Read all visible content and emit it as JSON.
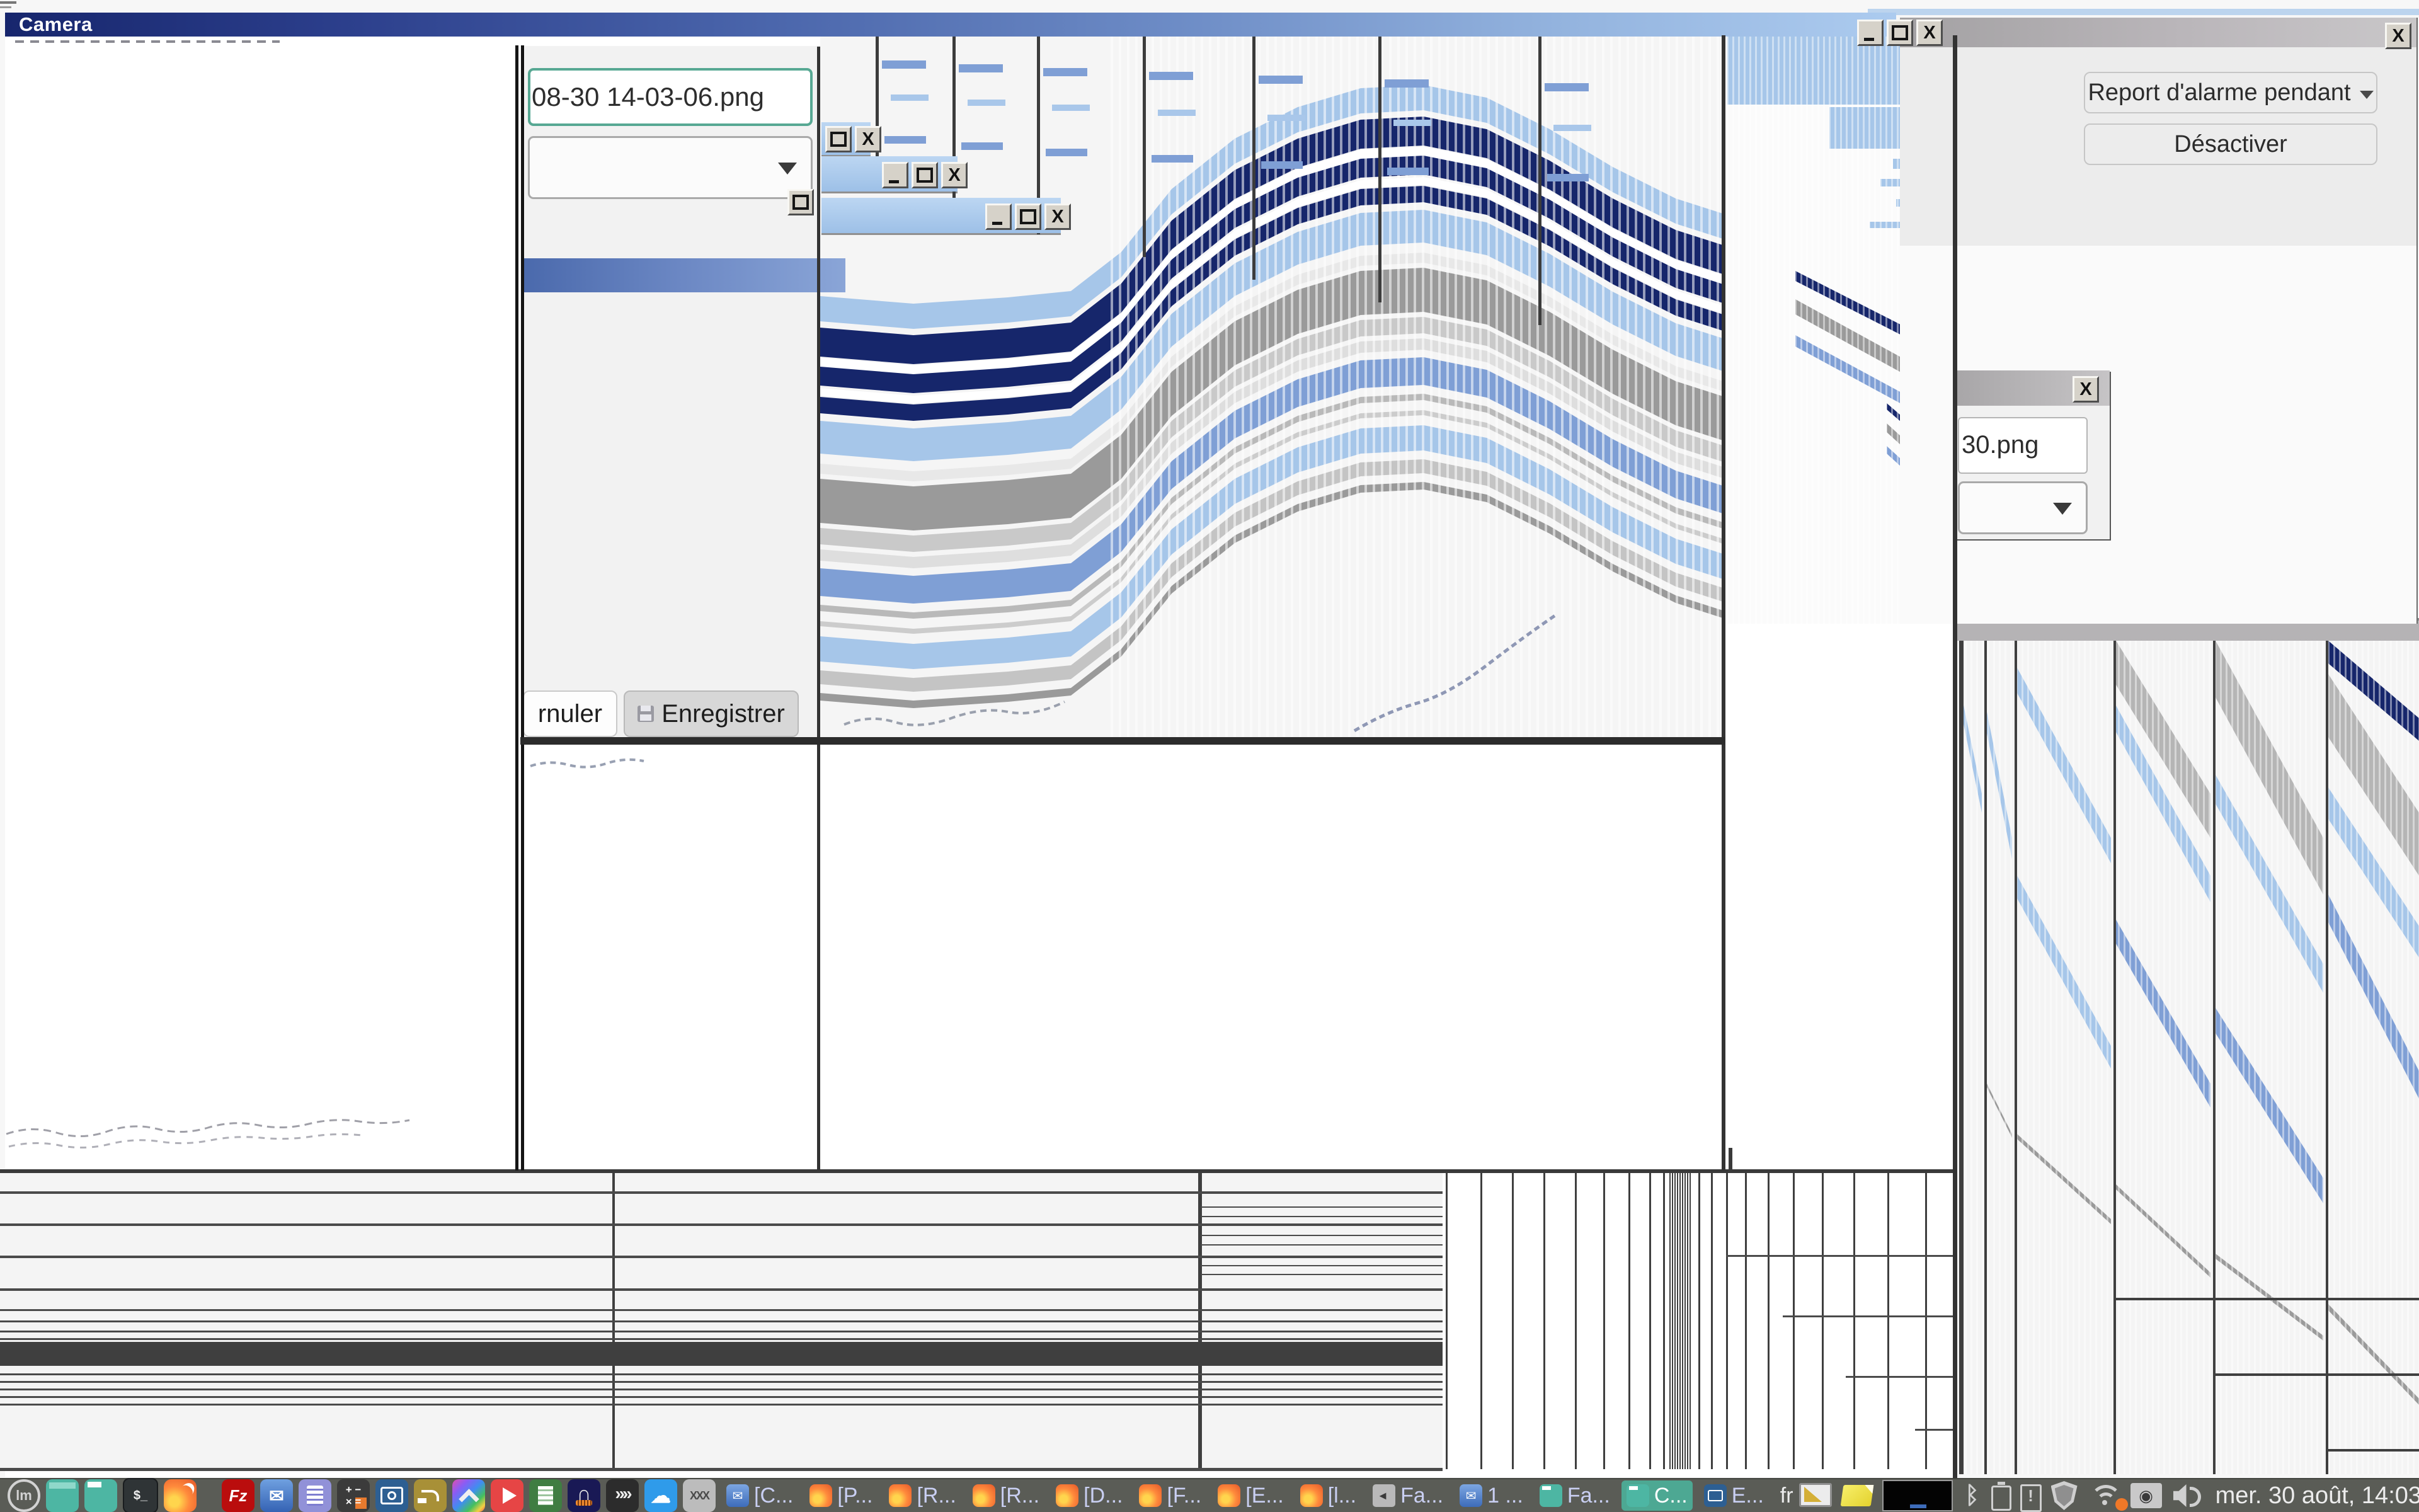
{
  "camera_window": {
    "title": "Camera"
  },
  "save_dialog": {
    "filename_value": "08-30 14-03-06.png",
    "cancel_label": "rnuler",
    "save_label": "Enregistrer"
  },
  "alarm_panel": {
    "report_button_label": "Report d'alarme pendant",
    "disable_button_label": "Désactiver"
  },
  "small_dialog": {
    "filename_value": "30.png"
  },
  "glyphs": {
    "close": "X",
    "bluetooth": "ᛒ"
  },
  "taskbar": {
    "launchers": [
      {
        "name": "mint-menu"
      },
      {
        "name": "show-desktop"
      },
      {
        "name": "files"
      },
      {
        "name": "terminal"
      },
      {
        "name": "firefox"
      },
      {
        "name": "filezilla"
      },
      {
        "name": "mail"
      },
      {
        "name": "text-editor"
      },
      {
        "name": "calculator"
      },
      {
        "name": "screenshot"
      },
      {
        "name": "audio-jack"
      },
      {
        "name": "photos"
      },
      {
        "name": "media-player"
      },
      {
        "name": "document-viewer"
      },
      {
        "name": "audacity"
      },
      {
        "name": "video-clips"
      },
      {
        "name": "cloud"
      },
      {
        "name": "xdm"
      }
    ],
    "windows": [
      {
        "icon": "mail",
        "label": "[C..."
      },
      {
        "icon": "firefox",
        "label": "[P..."
      },
      {
        "icon": "firefox",
        "label": "[R..."
      },
      {
        "icon": "firefox",
        "label": "[R..."
      },
      {
        "icon": "firefox",
        "label": "[D..."
      },
      {
        "icon": "firefox",
        "label": "[F..."
      },
      {
        "icon": "firefox",
        "label": "[E..."
      },
      {
        "icon": "firefox",
        "label": "[l..."
      },
      {
        "icon": "speaker",
        "label": "Fa..."
      },
      {
        "icon": "mail",
        "label": "1 ..."
      },
      {
        "icon": "folder",
        "label": "Fa..."
      },
      {
        "icon": "folder",
        "label": "C...",
        "active": true
      },
      {
        "icon": "camera",
        "label": "E..."
      }
    ],
    "tray": {
      "keyboard_layout": "fr",
      "clock": "mer. 30 août, 14:03",
      "icons": [
        {
          "name": "screen-ruler"
        },
        {
          "name": "sticky-notes"
        },
        {
          "name": "preview-thumbnail"
        },
        {
          "name": "bluetooth"
        },
        {
          "name": "battery"
        },
        {
          "name": "clipboard-alert"
        },
        {
          "name": "shield-update"
        },
        {
          "name": "wifi"
        },
        {
          "name": "nvidia"
        },
        {
          "name": "volume"
        }
      ]
    }
  },
  "colors": {
    "titlebar_navy": "#17266d",
    "titlebar_light": "#accbef",
    "accent_teal": "#57a893",
    "taskbar_bg": "#5a5c56",
    "active_task_teal": "#4da893",
    "band_navy": "#16266b",
    "band_blue": "#7f9fd5",
    "band_lightblue": "#a6c6e9",
    "band_gray": "#9a9a9a",
    "selected_row_blue": "#5c7ab8"
  }
}
